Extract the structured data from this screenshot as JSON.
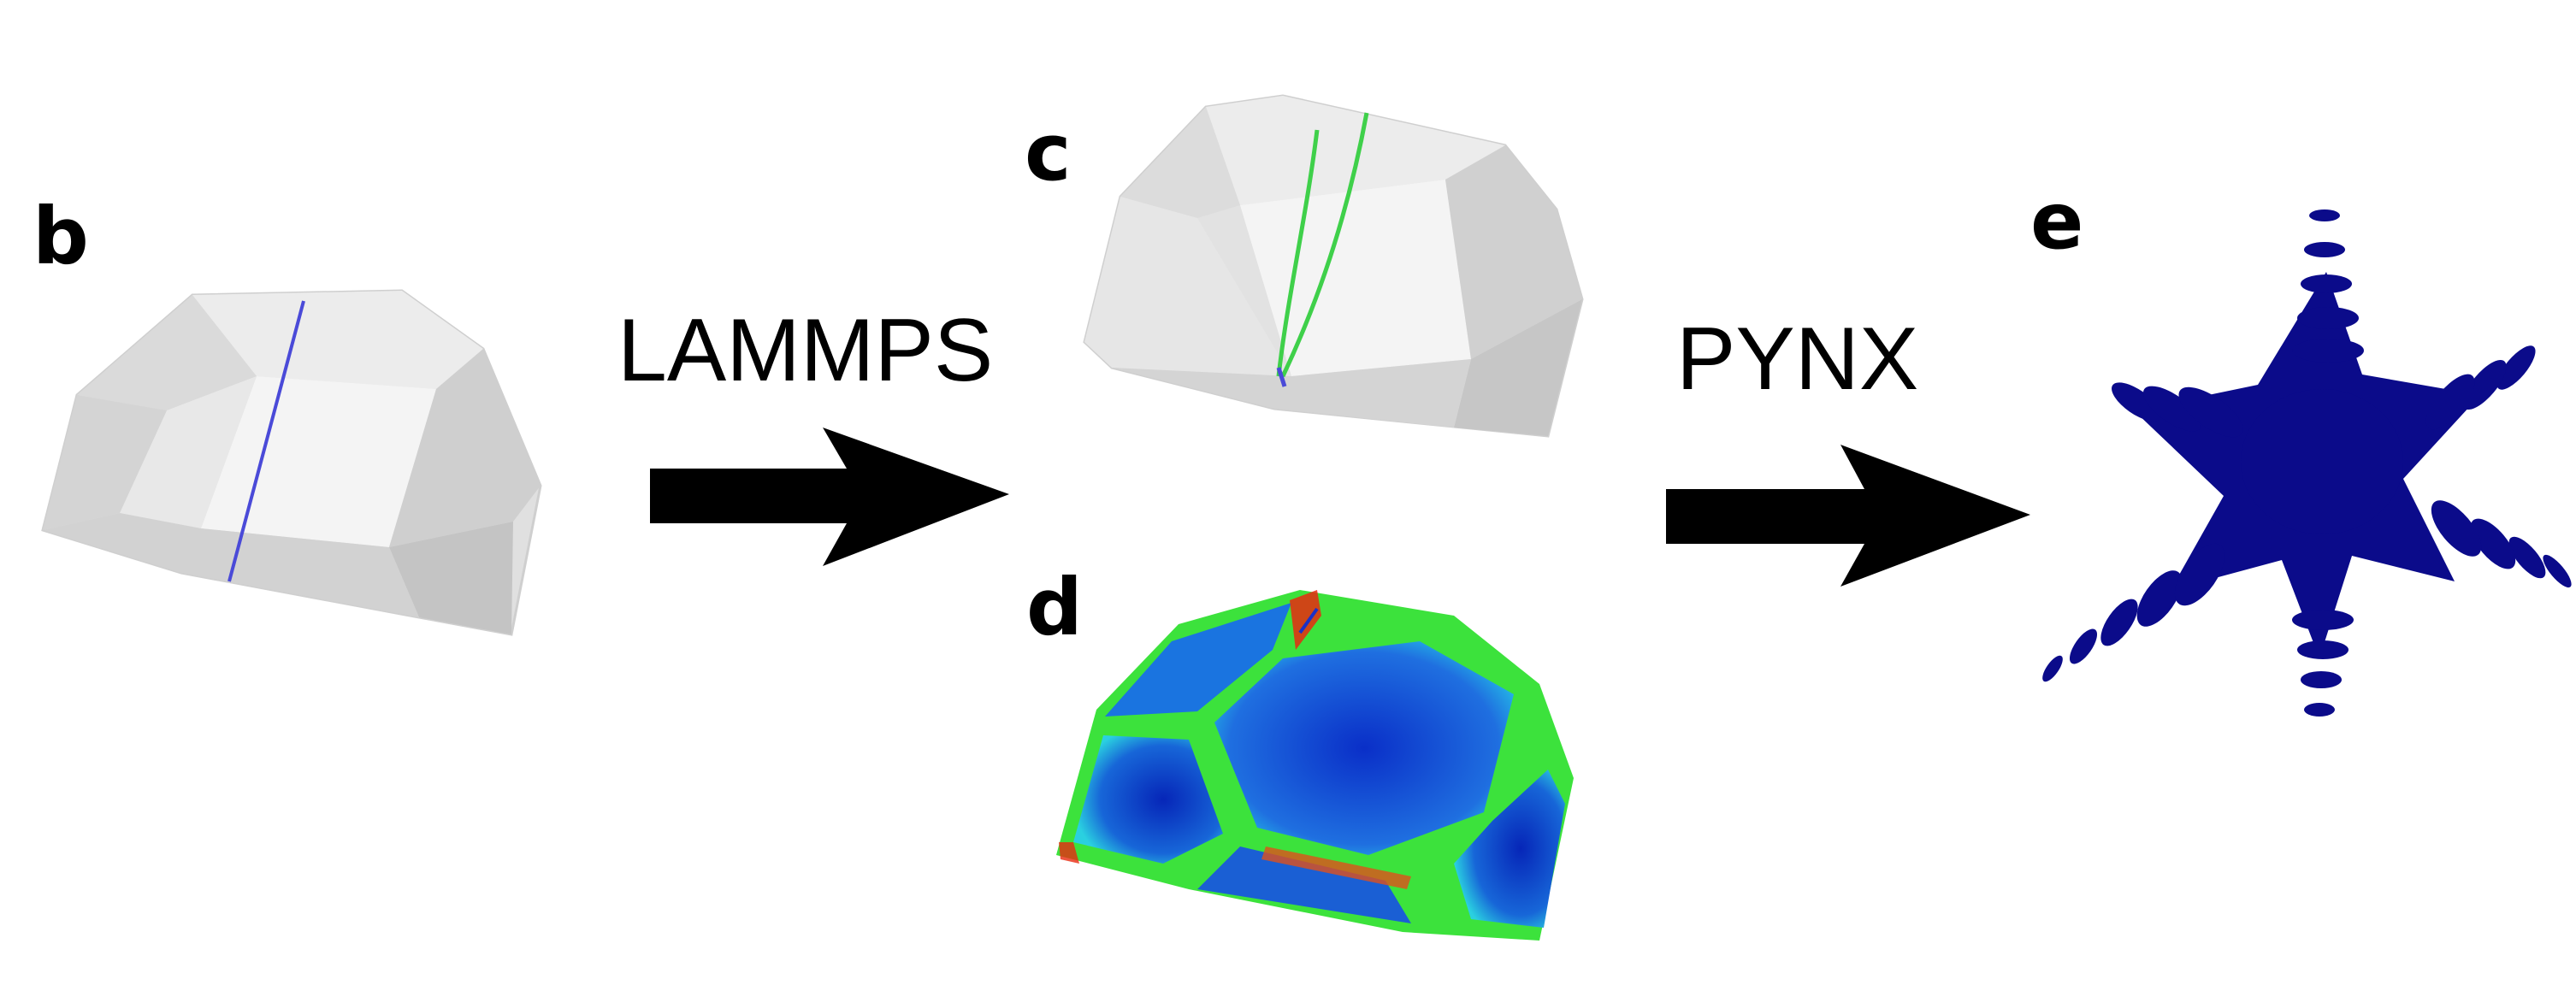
{
  "panels": {
    "b": "b",
    "c": "c",
    "d": "d",
    "e": "e"
  },
  "steps": {
    "first": "LAMMPS",
    "second": "PYNX"
  },
  "colors": {
    "crystal_face_light": "#efefef",
    "crystal_face_mid": "#dcdcdc",
    "crystal_face_dark": "#c6c6c6",
    "dislocation_blue": "#4a4ad8",
    "dislocation_green": "#3fd04a",
    "strain_low": "#0a2fc8",
    "strain_mid": "#1ec8e0",
    "strain_edge": "#3ce23c",
    "strain_high": "#e82a10",
    "diffraction": "#0b0b8a",
    "arrow": "#000000"
  }
}
